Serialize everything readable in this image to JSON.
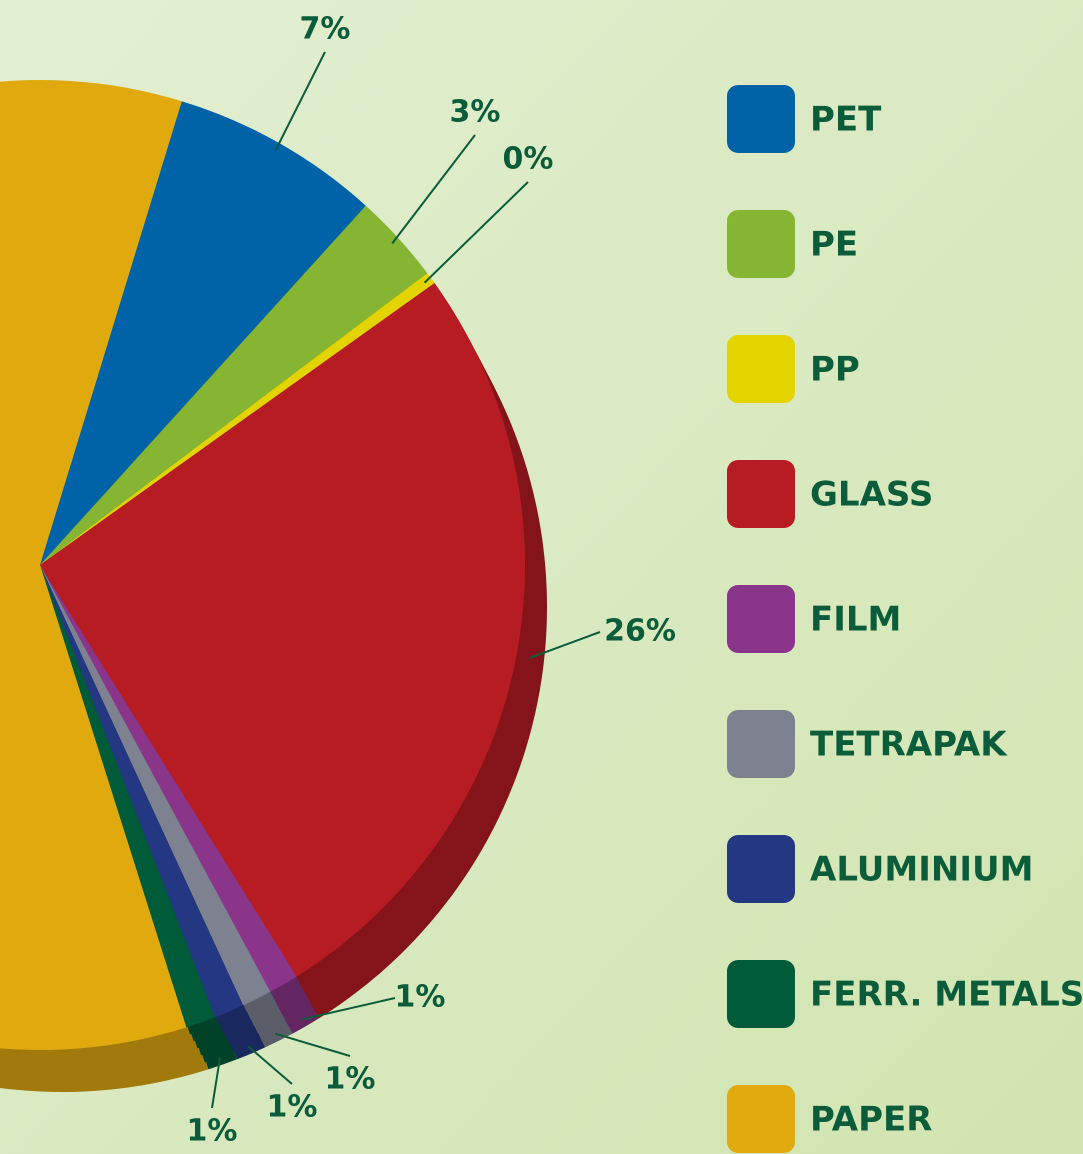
{
  "chart_data": {
    "type": "pie",
    "categories": [
      "PET",
      "PE",
      "PP",
      "GLASS",
      "FILM",
      "TETRAPAK",
      "ALUMINIUM",
      "FERR. METALS",
      "PAPER"
    ],
    "values": [
      7,
      3,
      0.4,
      26,
      1,
      1,
      1,
      1,
      59.6
    ],
    "value_labels": [
      "7%",
      "3%",
      "0%",
      "26%",
      "1%",
      "1%",
      "1%",
      "1%",
      null
    ],
    "colors": [
      "#0063a8",
      "#86b534",
      "#e3d400",
      "#b81c23",
      "#8a3589",
      "#7e8190",
      "#233782",
      "#005c38",
      "#e0aa0f"
    ],
    "legend": "right"
  }
}
